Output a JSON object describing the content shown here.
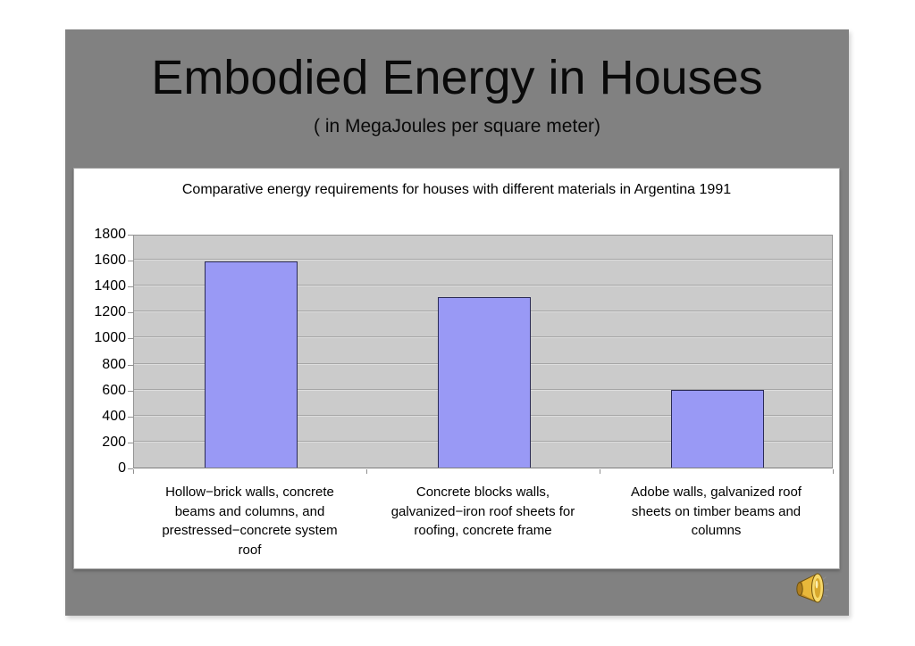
{
  "page": {
    "background_color": "#ffffff"
  },
  "slide": {
    "background_color": "#818181",
    "title": "Embodied Energy in Houses",
    "subtitle": "( in MegaJoules per square meter)",
    "sound_icon": "speaker-icon"
  },
  "chart_data": {
    "type": "bar",
    "title": "Comparative energy requirements for houses with different materials in Argentina 1991",
    "categories": [
      "Hollow−brick walls, concrete\nbeams and columns, and\nprestressed−concrete system\nroof",
      "Concrete blocks walls,\ngalvanized−iron roof sheets for\nroofing, concrete frame",
      "Adobe walls, galvanized roof\nsheets on timber beams and\ncolumns"
    ],
    "values": [
      1585,
      1310,
      595
    ],
    "xlabel": "",
    "ylabel": "",
    "ylim": [
      0,
      1800
    ],
    "yticks": [
      0,
      200,
      400,
      600,
      800,
      1000,
      1200,
      1400,
      1600,
      1800
    ],
    "grid": true,
    "legend": "none",
    "bar_color": "#9999f5",
    "bar_border_color": "#2a2a55",
    "plot_background": "#cbcbcb",
    "gridline_color": "#a6a6a6"
  }
}
